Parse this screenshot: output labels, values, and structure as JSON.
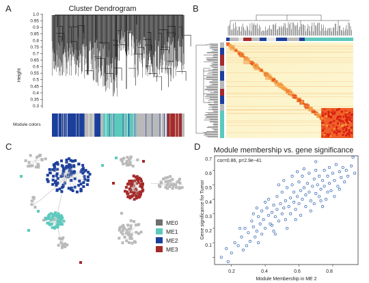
{
  "panels": {
    "A": {
      "label": "A",
      "title": "Cluster Dendrogram",
      "ylabel": "Height",
      "yticks": [
        "1.0",
        "0.95",
        "0.9",
        "0.85",
        "0.8",
        "0.75",
        "0.7",
        "0.65",
        "0.6",
        "0.55",
        "0.5",
        "0.45",
        "0.4",
        "0.35",
        "0.3"
      ],
      "module_colors_label": "Module colors"
    },
    "B": {
      "label": "B"
    },
    "C": {
      "label": "C",
      "legend": [
        {
          "name": "ME0",
          "color": "#6e6e6e"
        },
        {
          "name": "ME1",
          "color": "#5cc9bd"
        },
        {
          "name": "ME2",
          "color": "#1b3f9b"
        },
        {
          "name": "ME3",
          "color": "#a52a2a"
        }
      ]
    },
    "D": {
      "label": "D",
      "title": "Module membership vs. gene significance",
      "annotation": "cor=0.86, p=2.9e−41",
      "xlabel": "Module Membership in ME 2",
      "ylabel": "Gene significance for Tumor",
      "xticks": [
        "0.2",
        "0.4",
        "0.6",
        "0.8"
      ],
      "yticks": [
        "0.1",
        "0.2",
        "0.3",
        "0.4",
        "0.5",
        "0.6",
        "0.7"
      ]
    }
  },
  "colors": {
    "gray": "#b9b9b9",
    "turquoise": "#5cc9bd",
    "blue": "#1b3f9b",
    "brown": "#a52a2a",
    "point": "#2b5fae"
  },
  "chart_data": {
    "type": "scatter",
    "title": "Module membership vs. gene significance",
    "xlabel": "Module Membership in ME 2",
    "ylabel": "Gene significance for Tumor",
    "xlim": [
      0.1,
      0.95
    ],
    "ylim": [
      0.05,
      0.8
    ],
    "points": [
      [
        0.14,
        0.1
      ],
      [
        0.18,
        0.07
      ],
      [
        0.17,
        0.16
      ],
      [
        0.2,
        0.13
      ],
      [
        0.22,
        0.2
      ],
      [
        0.24,
        0.18
      ],
      [
        0.26,
        0.24
      ],
      [
        0.27,
        0.15
      ],
      [
        0.28,
        0.3
      ],
      [
        0.3,
        0.27
      ],
      [
        0.31,
        0.21
      ],
      [
        0.32,
        0.35
      ],
      [
        0.33,
        0.31
      ],
      [
        0.34,
        0.24
      ],
      [
        0.35,
        0.28
      ],
      [
        0.36,
        0.38
      ],
      [
        0.37,
        0.33
      ],
      [
        0.38,
        0.42
      ],
      [
        0.38,
        0.26
      ],
      [
        0.39,
        0.36
      ],
      [
        0.4,
        0.3
      ],
      [
        0.41,
        0.44
      ],
      [
        0.42,
        0.39
      ],
      [
        0.42,
        0.5
      ],
      [
        0.43,
        0.33
      ],
      [
        0.44,
        0.41
      ],
      [
        0.45,
        0.46
      ],
      [
        0.45,
        0.28
      ],
      [
        0.46,
        0.38
      ],
      [
        0.47,
        0.52
      ],
      [
        0.47,
        0.43
      ],
      [
        0.48,
        0.35
      ],
      [
        0.49,
        0.47
      ],
      [
        0.5,
        0.4
      ],
      [
        0.5,
        0.55
      ],
      [
        0.51,
        0.44
      ],
      [
        0.52,
        0.49
      ],
      [
        0.52,
        0.36
      ],
      [
        0.53,
        0.58
      ],
      [
        0.54,
        0.45
      ],
      [
        0.55,
        0.51
      ],
      [
        0.55,
        0.4
      ],
      [
        0.56,
        0.6
      ],
      [
        0.57,
        0.48
      ],
      [
        0.57,
        0.55
      ],
      [
        0.58,
        0.43
      ],
      [
        0.59,
        0.52
      ],
      [
        0.6,
        0.62
      ],
      [
        0.6,
        0.47
      ],
      [
        0.61,
        0.56
      ],
      [
        0.62,
        0.5
      ],
      [
        0.62,
        0.66
      ],
      [
        0.63,
        0.58
      ],
      [
        0.64,
        0.45
      ],
      [
        0.64,
        0.53
      ],
      [
        0.65,
        0.61
      ],
      [
        0.66,
        0.55
      ],
      [
        0.66,
        0.68
      ],
      [
        0.67,
        0.49
      ],
      [
        0.68,
        0.59
      ],
      [
        0.69,
        0.64
      ],
      [
        0.7,
        0.54
      ],
      [
        0.7,
        0.7
      ],
      [
        0.71,
        0.6
      ],
      [
        0.72,
        0.52
      ],
      [
        0.72,
        0.66
      ],
      [
        0.73,
        0.57
      ],
      [
        0.74,
        0.63
      ],
      [
        0.75,
        0.7
      ],
      [
        0.75,
        0.59
      ],
      [
        0.76,
        0.5
      ],
      [
        0.77,
        0.66
      ],
      [
        0.78,
        0.61
      ],
      [
        0.78,
        0.72
      ],
      [
        0.79,
        0.56
      ],
      [
        0.8,
        0.68
      ],
      [
        0.81,
        0.63
      ],
      [
        0.82,
        0.74
      ],
      [
        0.83,
        0.59
      ],
      [
        0.84,
        0.69
      ],
      [
        0.85,
        0.65
      ],
      [
        0.86,
        0.72
      ],
      [
        0.87,
        0.62
      ],
      [
        0.88,
        0.7
      ],
      [
        0.89,
        0.66
      ],
      [
        0.91,
        0.73
      ],
      [
        0.92,
        0.79
      ],
      [
        0.93,
        0.68
      ],
      [
        0.29,
        0.18
      ],
      [
        0.36,
        0.2
      ],
      [
        0.44,
        0.32
      ],
      [
        0.53,
        0.3
      ],
      [
        0.58,
        0.36
      ],
      [
        0.67,
        0.42
      ],
      [
        0.74,
        0.45
      ],
      [
        0.81,
        0.52
      ],
      [
        0.4,
        0.48
      ],
      [
        0.48,
        0.6
      ],
      [
        0.56,
        0.66
      ],
      [
        0.63,
        0.71
      ],
      [
        0.7,
        0.76
      ],
      [
        0.46,
        0.26
      ],
      [
        0.35,
        0.44
      ],
      [
        0.61,
        0.39
      ],
      [
        0.69,
        0.47
      ],
      [
        0.77,
        0.55
      ],
      [
        0.84,
        0.57
      ],
      [
        0.25,
        0.3
      ],
      [
        0.33,
        0.4
      ],
      [
        0.51,
        0.63
      ],
      [
        0.59,
        0.69
      ],
      [
        0.73,
        0.49
      ]
    ]
  }
}
